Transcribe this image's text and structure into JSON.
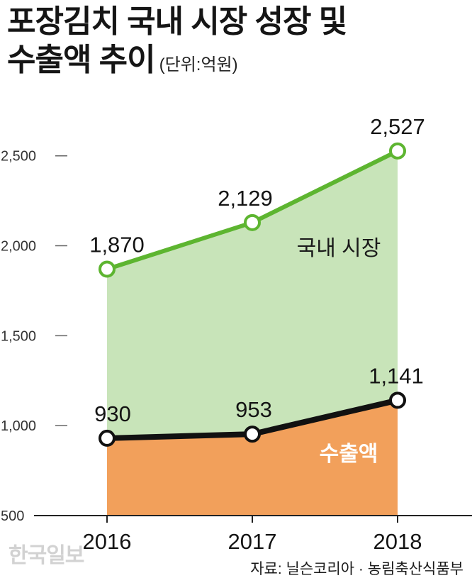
{
  "chart_data": {
    "type": "area",
    "title_lines": [
      "포장김치 국내 시장 성장 및",
      "수출액 추이"
    ],
    "unit": "(단위:억원)",
    "categories": [
      "2016",
      "2017",
      "2018"
    ],
    "series": [
      {
        "name": "국내 시장",
        "values": [
          1870,
          2129,
          2527
        ],
        "labels": [
          "1,870",
          "2,129",
          "2,527"
        ],
        "line_color": "#5db530",
        "fill_color": "#c8e4b9"
      },
      {
        "name": "수출액",
        "values": [
          930,
          953,
          1141
        ],
        "labels": [
          "930",
          "953",
          "1,141"
        ],
        "line_color": "#111111",
        "fill_color": "#f2a05b"
      }
    ],
    "yticks": [
      500,
      1000,
      1500,
      2000,
      2500
    ],
    "ytick_labels": [
      "500",
      "1,000",
      "1,500",
      "2,000",
      "2,500"
    ],
    "ylim": [
      500,
      2700
    ],
    "grid": false
  },
  "source": "자료: 닐슨코리아 · 농림축산식품부",
  "watermark": "한국일보"
}
